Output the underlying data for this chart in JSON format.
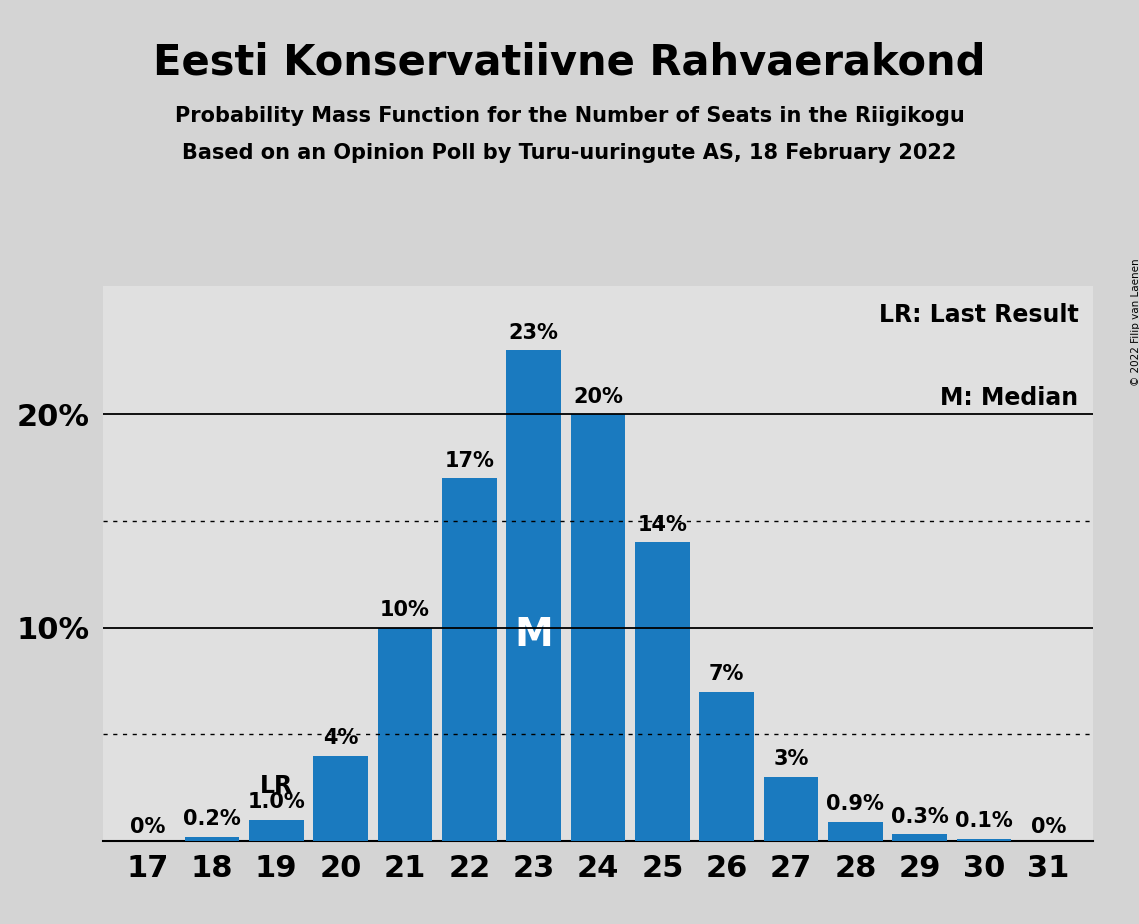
{
  "title": "Eesti Konservatiivne Rahvaerakond",
  "subtitle1": "Probability Mass Function for the Number of Seats in the Riigikogu",
  "subtitle2": "Based on an Opinion Poll by Turu-uuringute AS, 18 February 2022",
  "copyright": "© 2022 Filip van Laenen",
  "seats": [
    17,
    18,
    19,
    20,
    21,
    22,
    23,
    24,
    25,
    26,
    27,
    28,
    29,
    30,
    31
  ],
  "probabilities": [
    0.0,
    0.2,
    1.0,
    4.0,
    10.0,
    17.0,
    23.0,
    20.0,
    14.0,
    7.0,
    3.0,
    0.9,
    0.3,
    0.1,
    0.0
  ],
  "bar_color": "#1a7abf",
  "median_seat": 23,
  "last_result_seat": 19,
  "legend_lr": "LR: Last Result",
  "legend_m": "M: Median",
  "fig_facecolor": "#d4d4d4",
  "plot_facecolor": "#e0e0e0",
  "ylim_max": 26,
  "solid_gridlines": [
    10.0,
    20.0
  ],
  "dotted_gridlines": [
    5.0,
    15.0
  ],
  "bar_labels": [
    "0%",
    "0.2%",
    "1.0%",
    "4%",
    "10%",
    "17%",
    "23%",
    "20%",
    "14%",
    "7%",
    "3%",
    "0.9%",
    "0.3%",
    "0.1%",
    "0%"
  ],
  "title_fontsize": 30,
  "subtitle_fontsize": 15,
  "ytick_fontsize": 22,
  "xtick_fontsize": 22,
  "bar_label_fontsize": 15,
  "legend_fontsize": 17,
  "lr_fontsize": 17,
  "median_label_fontsize": 28
}
